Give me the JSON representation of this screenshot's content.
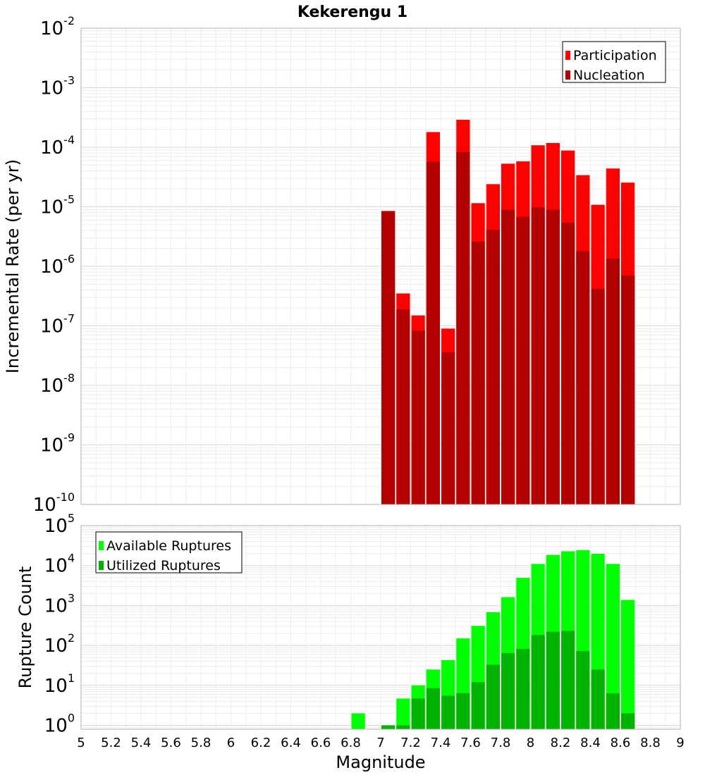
{
  "chart_data": [
    {
      "type": "bar",
      "title": "Kekerengu 1",
      "xlabel": "",
      "ylabel": "Incremental Rate (per yr)",
      "yscale": "log",
      "ylim": [
        1e-10,
        0.01
      ],
      "xlim": [
        5,
        9
      ],
      "grid": true,
      "legend_position": "top-right",
      "x": [
        7.0,
        7.1,
        7.2,
        7.3,
        7.4,
        7.5,
        7.6,
        7.7,
        7.8,
        7.9,
        8.0,
        8.1,
        8.2,
        8.3,
        8.4,
        8.5,
        8.6
      ],
      "series": [
        {
          "name": "Participation",
          "color": "#ff0000",
          "values": [
            8.5e-06,
            3.5e-07,
            1.5e-07,
            0.00018,
            9e-08,
            0.00029,
            1.15e-05,
            2.4e-05,
            5.3e-05,
            5.8e-05,
            0.000108,
            0.000118,
            8.8e-05,
            3.4e-05,
            1.08e-05,
            4.4e-05,
            2.55e-05
          ]
        },
        {
          "name": "Nucleation",
          "color": "#b30000",
          "values": [
            8.5e-06,
            1.9e-07,
            8.3e-08,
            5.7e-05,
            3.6e-08,
            8.3e-05,
            2.6e-06,
            4.1e-06,
            8.9e-06,
            6.8e-06,
            9.8e-06,
            8.9e-06,
            5.4e-06,
            1.8e-06,
            4.2e-07,
            1.35e-06,
            7e-07
          ]
        }
      ]
    },
    {
      "type": "bar",
      "title": "",
      "xlabel": "Magnitude",
      "ylabel": "Rupture Count",
      "yscale": "log",
      "ylim": [
        0.8,
        100000.0
      ],
      "xlim": [
        5,
        9
      ],
      "grid": true,
      "legend_position": "top-left",
      "x": [
        6.8,
        7.0,
        7.1,
        7.2,
        7.3,
        7.4,
        7.5,
        7.6,
        7.7,
        7.8,
        7.9,
        8.0,
        8.1,
        8.2,
        8.3,
        8.4,
        8.5,
        8.6
      ],
      "x_ticks": [
        "5",
        "5.2",
        "5.4",
        "5.6",
        "5.8",
        "6",
        "6.2",
        "6.4",
        "6.6",
        "6.8",
        "7",
        "7.2",
        "7.4",
        "7.6",
        "7.8",
        "8",
        "8.2",
        "8.4",
        "8.6",
        "8.8",
        "9"
      ],
      "series": [
        {
          "name": "Available Ruptures",
          "color": "#00ff00",
          "values": [
            2,
            1,
            4.7,
            10,
            25,
            43,
            150,
            310,
            680,
            1620,
            4950,
            11000,
            18500,
            22800,
            24400,
            19700,
            11000,
            1380
          ]
        },
        {
          "name": "Utilized Ruptures",
          "color": "#00b300",
          "values": [
            0,
            1,
            1,
            4.7,
            8.5,
            5.5,
            6.4,
            12,
            33,
            64,
            82,
            182,
            220,
            232,
            72,
            25,
            6.3,
            2
          ]
        }
      ]
    }
  ]
}
